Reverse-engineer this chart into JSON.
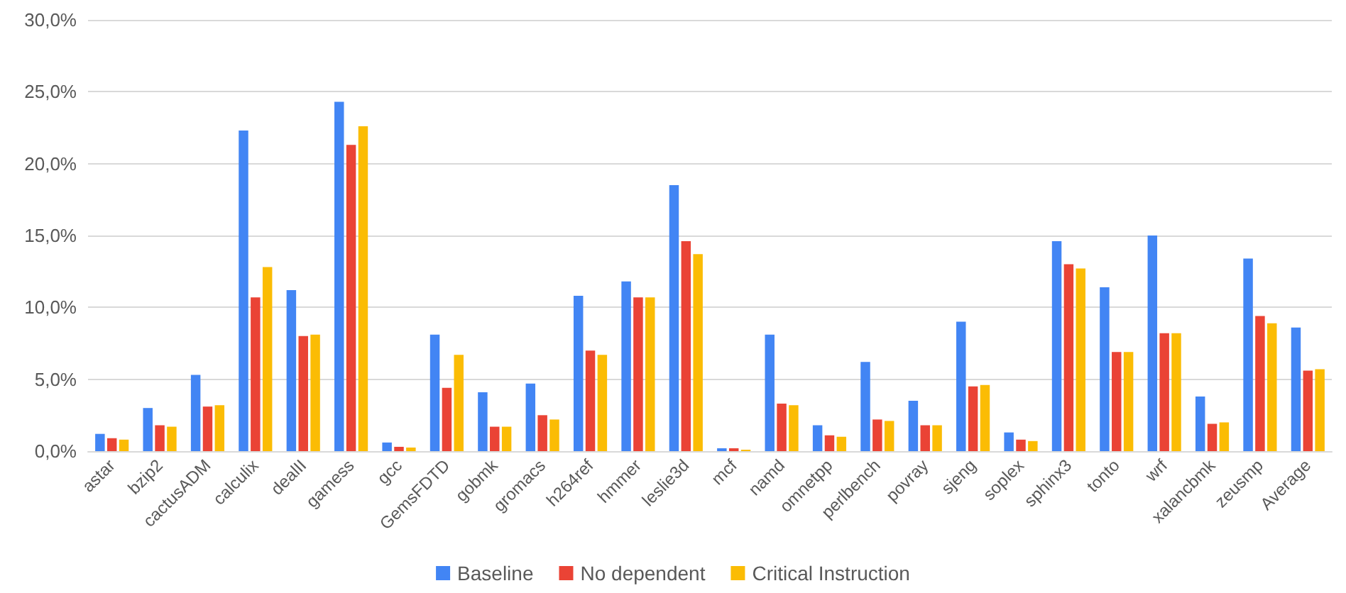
{
  "chart_data": {
    "type": "bar",
    "categories": [
      "astar",
      "bzip2",
      "cactusADM",
      "calculix",
      "dealII",
      "gamess",
      "gcc",
      "GemsFDTD",
      "gobmk",
      "gromacs",
      "h264ref",
      "hmmer",
      "leslie3d",
      "mcf",
      "namd",
      "omnetpp",
      "perlbench",
      "povray",
      "sjeng",
      "soplex",
      "sphinx3",
      "tonto",
      "wrf",
      "xalancbmk",
      "zeusmp",
      "Average"
    ],
    "series": [
      {
        "name": "Baseline",
        "color": "#4285f4",
        "values": [
          1.2,
          3.0,
          5.3,
          22.3,
          11.2,
          24.3,
          0.6,
          8.1,
          4.1,
          4.7,
          10.8,
          11.8,
          18.5,
          0.2,
          8.1,
          1.8,
          6.2,
          3.5,
          9.0,
          1.3,
          14.6,
          11.4,
          15.0,
          3.8,
          13.4,
          8.6
        ]
      },
      {
        "name": "No dependent",
        "color": "#ea4335",
        "values": [
          0.9,
          1.8,
          3.1,
          10.7,
          8.0,
          21.3,
          0.3,
          4.4,
          1.7,
          2.5,
          7.0,
          10.7,
          14.6,
          0.2,
          3.3,
          1.1,
          2.2,
          1.8,
          4.5,
          0.8,
          13.0,
          6.9,
          8.2,
          1.9,
          9.4,
          5.6
        ]
      },
      {
        "name": "Critical Instruction",
        "color": "#fbbc04",
        "values": [
          0.8,
          1.7,
          3.2,
          12.8,
          8.1,
          22.6,
          0.25,
          6.7,
          1.7,
          2.2,
          6.7,
          10.7,
          13.7,
          0.1,
          3.2,
          1.0,
          2.1,
          1.8,
          4.6,
          0.7,
          12.7,
          6.9,
          8.2,
          2.0,
          8.9,
          5.7
        ]
      }
    ],
    "ylim": [
      0,
      30
    ],
    "yticks": [
      {
        "value": 0,
        "label": "0,0%"
      },
      {
        "value": 5,
        "label": "5,0%"
      },
      {
        "value": 10,
        "label": "10,0%"
      },
      {
        "value": 15,
        "label": "15,0%"
      },
      {
        "value": 20,
        "label": "20,0%"
      },
      {
        "value": 25,
        "label": "25,0%"
      },
      {
        "value": 30,
        "label": "30,0%"
      }
    ],
    "grid": "y",
    "legend": "bottom"
  }
}
